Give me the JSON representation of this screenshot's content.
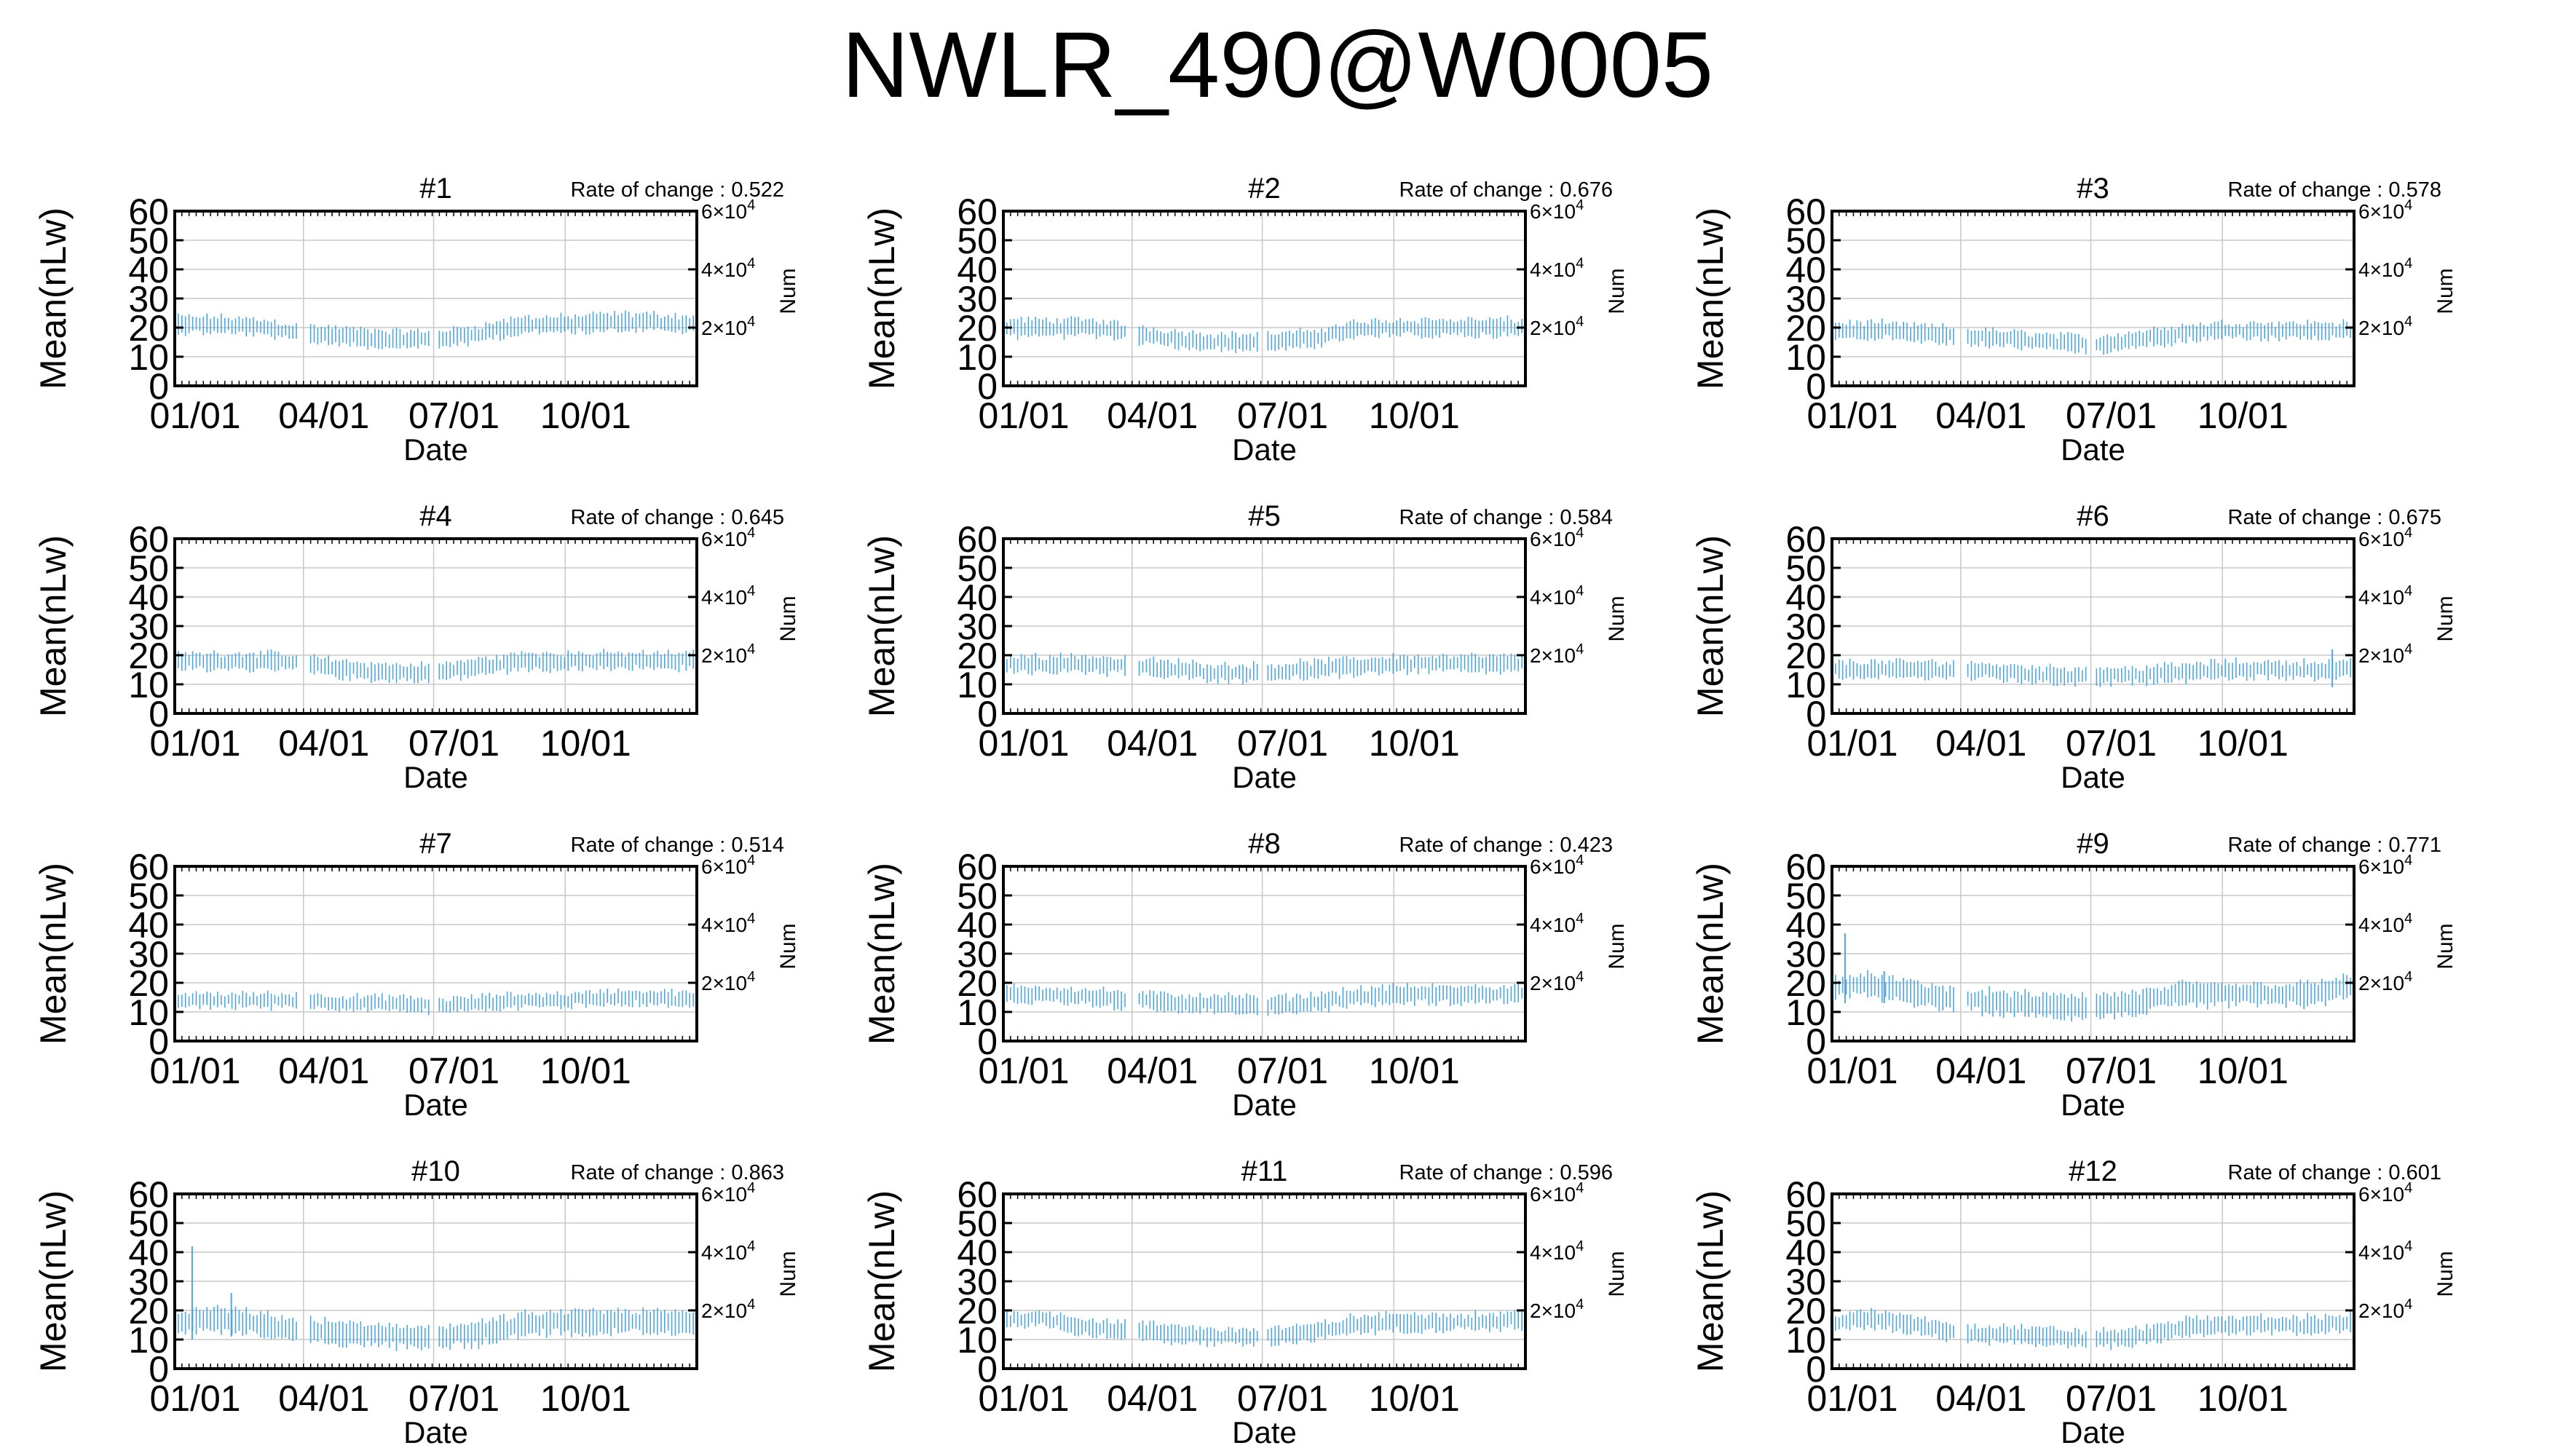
{
  "title": "NWLR_490@W0005",
  "chart_data": {
    "type": "line",
    "ylabel": "Mean(nLw)",
    "y2label": "Num",
    "xlabel": "Date",
    "ylim": [
      0,
      60
    ],
    "yticks": [
      "0",
      "10",
      "20",
      "30",
      "40",
      "50",
      "60"
    ],
    "y2ticks": [
      {
        "base": "2×10",
        "exp": "4",
        "value": 20000
      },
      {
        "base": "4×10",
        "exp": "4",
        "value": 40000
      },
      {
        "base": "6×10",
        "exp": "4",
        "value": 60000
      }
    ],
    "y2lim": [
      0,
      60000
    ],
    "xticks": [
      "01/01",
      "04/01",
      "07/01",
      "10/01"
    ],
    "grid": true,
    "series_color": "#4da6e0",
    "rate_prefix": "Rate of change : ",
    "panels": [
      {
        "name": "#1",
        "rate": "0.522",
        "seasonal": [
          21,
          21,
          20,
          18,
          17,
          16,
          16,
          18,
          21,
          21,
          22,
          22
        ],
        "spread": 3,
        "spikes": []
      },
      {
        "name": "#2",
        "rate": "0.676",
        "seasonal": [
          20,
          20,
          20,
          18,
          16,
          15,
          15,
          16,
          19,
          20,
          20,
          20
        ],
        "spread": 3,
        "spikes": []
      },
      {
        "name": "#3",
        "rate": "0.578",
        "seasonal": [
          19,
          19,
          18,
          17,
          16,
          15,
          14,
          16,
          18,
          19,
          19,
          19
        ],
        "spread": 3,
        "spikes": []
      },
      {
        "name": "#4",
        "rate": "0.645",
        "seasonal": [
          18,
          18,
          18,
          17,
          15,
          14,
          14,
          16,
          18,
          18,
          18,
          18
        ],
        "spread": 3,
        "spikes": []
      },
      {
        "name": "#5",
        "rate": "0.584",
        "seasonal": [
          17,
          17,
          17,
          16,
          15,
          14,
          14,
          15,
          16,
          17,
          17,
          17
        ],
        "spread": 3,
        "spikes": []
      },
      {
        "name": "#6",
        "rate": "0.675",
        "seasonal": [
          15,
          15,
          15,
          15,
          14,
          13,
          13,
          13,
          14,
          15,
          15,
          15
        ],
        "spread": 3,
        "spikes": [
          {
            "month": 11.5,
            "value": 22
          }
        ]
      },
      {
        "name": "#7",
        "rate": "0.514",
        "seasonal": [
          14,
          14,
          14,
          14,
          13,
          13,
          12,
          13,
          14,
          14,
          15,
          15
        ],
        "spread": 2.5,
        "spikes": []
      },
      {
        "name": "#8",
        "rate": "0.423",
        "seasonal": [
          16,
          16,
          15,
          14,
          13,
          13,
          12,
          13,
          15,
          16,
          16,
          16
        ],
        "spread": 3,
        "spikes": []
      },
      {
        "name": "#9",
        "rate": "0.771",
        "seasonal": [
          19,
          19,
          16,
          14,
          13,
          12,
          12,
          13,
          16,
          16,
          16,
          16
        ],
        "spread": 4,
        "spikes": [
          {
            "month": 0.3,
            "value": 37
          },
          {
            "month": 1.2,
            "value": 24
          }
        ]
      },
      {
        "name": "#10",
        "rate": "0.863",
        "seasonal": [
          16,
          17,
          15,
          13,
          12,
          11,
          11,
          12,
          15,
          16,
          16,
          16
        ],
        "spread": 4,
        "spikes": [
          {
            "month": 0.4,
            "value": 42
          },
          {
            "month": 1.3,
            "value": 26
          }
        ]
      },
      {
        "name": "#11",
        "rate": "0.596",
        "seasonal": [
          17,
          17,
          14,
          13,
          12,
          11,
          11,
          12,
          15,
          16,
          16,
          16
        ],
        "spread": 3,
        "spikes": []
      },
      {
        "name": "#12",
        "rate": "0.601",
        "seasonal": [
          16,
          17,
          15,
          12,
          12,
          11,
          10,
          11,
          14,
          15,
          15,
          15
        ],
        "spread": 3,
        "spikes": []
      }
    ]
  }
}
